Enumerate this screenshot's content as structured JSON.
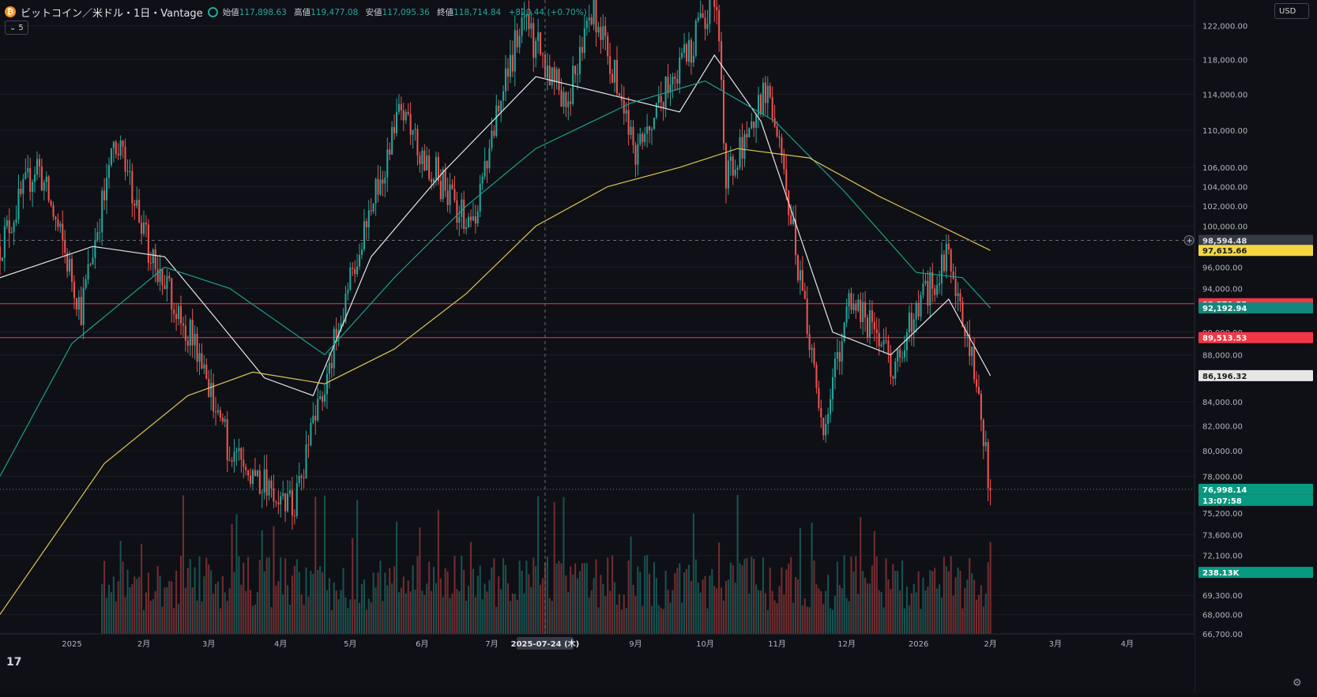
{
  "header": {
    "symbol": "ビットコイン／米ドル・1日・Vantage",
    "coin_icon": "bitcoin-icon",
    "open_label": "始値",
    "open_value": "117,898.63",
    "high_label": "高値",
    "high_value": "119,477.08",
    "low_label": "安値",
    "low_value": "117,095.36",
    "close_label": "終値",
    "close_value": "118,714.84",
    "change": "+820.44 (+0.70%)"
  },
  "indicator_toggle": {
    "icon": "chevron-down-icon",
    "count": "5"
  },
  "currency_select": "USD",
  "time_axis": {
    "labels": [
      "2025",
      "2月",
      "3月",
      "4月",
      "5月",
      "6月",
      "7月",
      "2025-07-24 (木)",
      "9月",
      "10月",
      "11月",
      "12月",
      "2026",
      "2月",
      "3月",
      "4月"
    ]
  },
  "price_axis": {
    "ticks": [
      "122,000.00",
      "118,000.00",
      "114,000.00",
      "110,000.00",
      "106,000.00",
      "104,000.00",
      "102,000.00",
      "100,000.00",
      "96,000.00",
      "94,000.00",
      "90,000.00",
      "88,000.00",
      "84,000.00",
      "82,000.00",
      "80,000.00",
      "78,000.00",
      "75,200.00",
      "73,600.00",
      "72,100.00",
      "69,300.00",
      "68,000.00",
      "66,700.00"
    ]
  },
  "price_labels": {
    "crosshair": "98,594.48",
    "ma200": "97,615.66",
    "hline_upper": "92,579.55",
    "ma50": "92,192.94",
    "hline_lower": "89,513.53",
    "ma20": "86,196.32",
    "last_price": "76,998.14",
    "countdown": "13:07:58",
    "volume": "238.13K"
  },
  "colors": {
    "up": "#26a69a",
    "down": "#ef5350",
    "ma20": "#e6e6e6",
    "ma50": "#1f9e8f",
    "ma200": "#e0c552",
    "hline": "#f23645",
    "background": "#0e1016"
  },
  "chart_data": {
    "type": "candlestick",
    "x_range": [
      "2024-12-01",
      "2026-04-30"
    ],
    "y_range": [
      66700,
      124000
    ],
    "horizontal_lines": [
      92579.55,
      89513.53
    ],
    "crosshair_date": "2025-07-24",
    "last_price": 76998.14,
    "key_prices": [
      {
        "date": "2024-12-01",
        "price": 98000
      },
      {
        "date": "2024-12-17",
        "price": 106500
      },
      {
        "date": "2025-01-05",
        "price": 92000
      },
      {
        "date": "2025-01-20",
        "price": 109000
      },
      {
        "date": "2025-02-03",
        "price": 98000
      },
      {
        "date": "2025-02-25",
        "price": 88000
      },
      {
        "date": "2025-03-10",
        "price": 80000
      },
      {
        "date": "2025-04-07",
        "price": 75500
      },
      {
        "date": "2025-04-22",
        "price": 87000
      },
      {
        "date": "2025-05-01",
        "price": 95000
      },
      {
        "date": "2025-05-22",
        "price": 111500
      },
      {
        "date": "2025-06-22",
        "price": 99500
      },
      {
        "date": "2025-07-14",
        "price": 122800
      },
      {
        "date": "2025-08-02",
        "price": 113000
      },
      {
        "date": "2025-08-14",
        "price": 124000
      },
      {
        "date": "2025-09-01",
        "price": 108000
      },
      {
        "date": "2025-10-06",
        "price": 125000
      },
      {
        "date": "2025-10-10",
        "price": 105000
      },
      {
        "date": "2025-10-28",
        "price": 114500
      },
      {
        "date": "2025-11-21",
        "price": 81000
      },
      {
        "date": "2025-12-03",
        "price": 93500
      },
      {
        "date": "2025-12-20",
        "price": 87000
      },
      {
        "date": "2026-01-14",
        "price": 97500
      },
      {
        "date": "2026-01-25",
        "price": 87000
      },
      {
        "date": "2026-02-01",
        "price": 76998
      }
    ],
    "moving_averages": [
      {
        "points": [
          [
            "2024-12-01",
            95000
          ],
          [
            "2025-01-10",
            98000
          ],
          [
            "2025-02-10",
            97000
          ],
          [
            "2025-03-05",
            91000
          ],
          [
            "2025-03-25",
            86000
          ],
          [
            "2025-04-15",
            84500
          ],
          [
            "2025-05-10",
            97000
          ],
          [
            "2025-06-10",
            105500
          ],
          [
            "2025-07-20",
            116000
          ],
          [
            "2025-08-20",
            114000
          ],
          [
            "2025-09-20",
            112000
          ],
          [
            "2025-10-05",
            118500
          ],
          [
            "2025-10-25",
            111000
          ],
          [
            "2025-11-25",
            90000
          ],
          [
            "2025-12-20",
            88000
          ],
          [
            "2026-01-14",
            93000
          ],
          [
            "2026-02-01",
            86196
          ]
        ]
      },
      {
        "points": [
          [
            "2024-12-01",
            78000
          ],
          [
            "2025-01-01",
            89000
          ],
          [
            "2025-02-10",
            96000
          ],
          [
            "2025-03-10",
            94000
          ],
          [
            "2025-04-20",
            88000
          ],
          [
            "2025-05-20",
            95000
          ],
          [
            "2025-06-20",
            102000
          ],
          [
            "2025-07-20",
            108000
          ],
          [
            "2025-08-30",
            113000
          ],
          [
            "2025-10-01",
            115500
          ],
          [
            "2025-10-31",
            111000
          ],
          [
            "2025-11-30",
            103500
          ],
          [
            "2025-12-31",
            95500
          ],
          [
            "2026-01-20",
            95000
          ],
          [
            "2026-02-01",
            92193
          ]
        ]
      },
      {
        "points": [
          [
            "2024-12-01",
            68000
          ],
          [
            "2025-01-15",
            79000
          ],
          [
            "2025-02-20",
            84500
          ],
          [
            "2025-03-20",
            86500
          ],
          [
            "2025-04-20",
            85500
          ],
          [
            "2025-05-20",
            88500
          ],
          [
            "2025-06-20",
            93500
          ],
          [
            "2025-07-20",
            100000
          ],
          [
            "2025-08-20",
            104000
          ],
          [
            "2025-09-20",
            106000
          ],
          [
            "2025-10-15",
            108000
          ],
          [
            "2025-11-15",
            107000
          ],
          [
            "2025-12-15",
            103000
          ],
          [
            "2026-01-15",
            99500
          ],
          [
            "2026-02-01",
            97616
          ]
        ]
      }
    ]
  }
}
